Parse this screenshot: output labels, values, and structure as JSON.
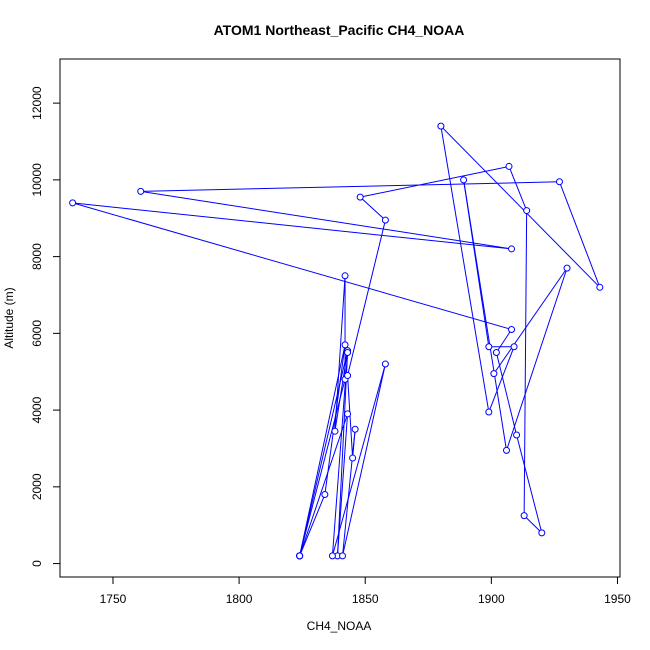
{
  "chart_data": {
    "type": "line",
    "title": "ATOM1 Northeast_Pacific CH4_NOAA",
    "xlabel": "CH4_NOAA",
    "ylabel": "Altitude (m)",
    "xlim": [
      1729,
      1951
    ],
    "ylim": [
      -350,
      13150
    ],
    "x_ticks": [
      1750,
      1800,
      1850,
      1900,
      1950
    ],
    "y_ticks": [
      0,
      2000,
      4000,
      6000,
      8000,
      10000,
      12000
    ],
    "grid": false,
    "legend": "none",
    "colors": {
      "series": "#0000ff",
      "axis": "#000000"
    },
    "series": [
      {
        "x": [
          1824,
          1824,
          1824,
          1824,
          1842,
          1842,
          1838,
          1843,
          1824,
          1834,
          1842,
          1824,
          1843,
          1839,
          1843,
          1837,
          1858,
          1841,
          1846,
          1845,
          1843,
          1858,
          1848,
          1907,
          1914,
          1913,
          1920,
          1910,
          1902,
          1908,
          1734,
          1908,
          1761,
          1927,
          1943,
          1880,
          1899,
          1909,
          1899,
          1889,
          1906,
          1930,
          1901
        ],
        "y": [
          200,
          200,
          200,
          200,
          4800,
          7500,
          3450,
          5550,
          200,
          1800,
          5700,
          200,
          3900,
          200,
          5500,
          200,
          5200,
          200,
          3500,
          2750,
          4900,
          8950,
          9550,
          10350,
          9200,
          1250,
          800,
          3350,
          5500,
          6100,
          9400,
          8200,
          9700,
          9950,
          7200,
          11400,
          3950,
          5650,
          5650,
          10000,
          2950,
          7700,
          4950
        ]
      }
    ]
  }
}
